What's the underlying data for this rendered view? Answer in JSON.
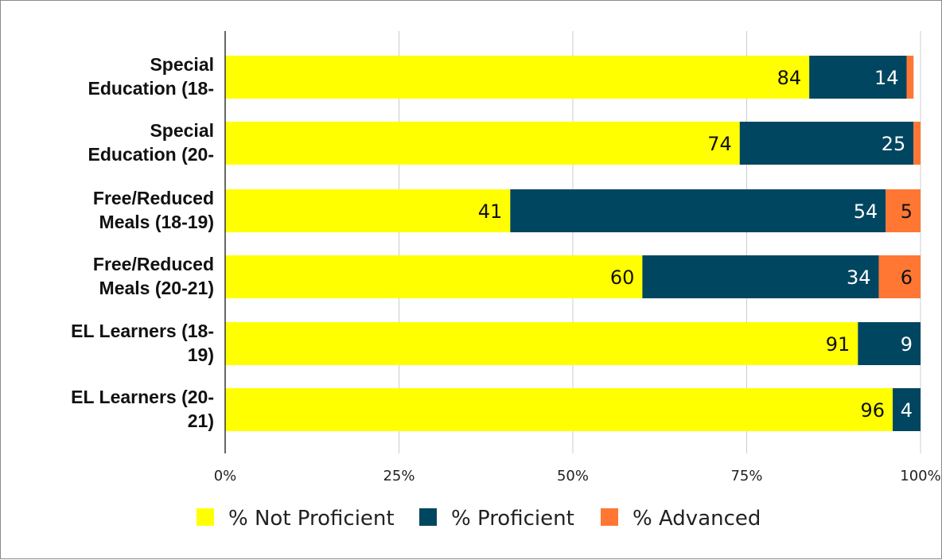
{
  "chart_data": {
    "type": "bar",
    "orientation": "horizontal",
    "stacked": true,
    "categories": [
      [
        "Special",
        "Education (18-"
      ],
      [
        "Special",
        "Education (20-"
      ],
      [
        "Free/Reduced",
        "Meals (18-19)"
      ],
      [
        "Free/Reduced",
        "Meals (20-21)"
      ],
      [
        "EL Learners (18-",
        "19)"
      ],
      [
        "EL Learners (20-",
        "21)"
      ]
    ],
    "series": [
      {
        "name": "% Not Proficient",
        "color": "#ffff00",
        "label_color": "#111111",
        "values": [
          84,
          74,
          41,
          60,
          91,
          96
        ]
      },
      {
        "name": "% Proficient",
        "color": "#004660",
        "label_color": "#ffffff",
        "values": [
          14,
          25,
          54,
          34,
          9,
          4
        ]
      },
      {
        "name": "% Advanced",
        "color": "#ff7733",
        "label_color": "#111111",
        "values": [
          1,
          1,
          5,
          6,
          0,
          0
        ]
      }
    ],
    "value_labels": [
      [
        "84",
        "74",
        "41",
        "60",
        "91",
        "96"
      ],
      [
        "14",
        "25",
        "54",
        "34",
        "9",
        "4"
      ],
      [
        "",
        "",
        "5",
        "6",
        "",
        ""
      ]
    ],
    "xlim": [
      0,
      100
    ],
    "xticks": [
      0,
      25,
      50,
      75,
      100
    ],
    "xtick_labels": [
      "0%",
      "25%",
      "50%",
      "75%",
      "100%"
    ],
    "grid": true,
    "legend_position": "bottom"
  }
}
